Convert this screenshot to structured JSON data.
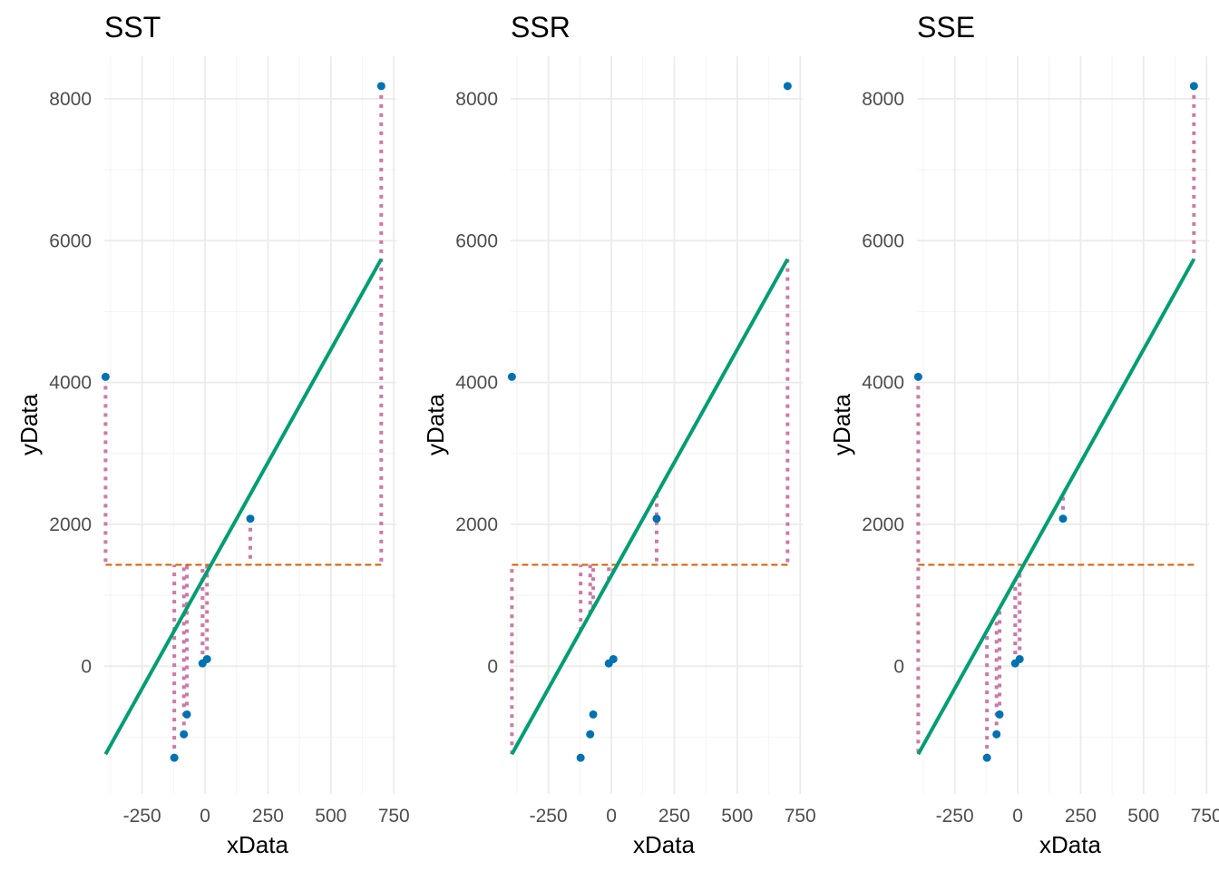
{
  "colors": {
    "points": "#0072b2",
    "regression_line": "#009e73",
    "mean_line": "#d55e00",
    "segments": "#cc79a7",
    "grid_major": "#ebebeb",
    "grid_minor": "#f5f5f5"
  },
  "chart_data": [
    {
      "type": "scatter",
      "title": "SST",
      "xlabel": "xData",
      "ylabel": "yData",
      "xlim": [
        -400,
        760
      ],
      "ylim": [
        -1800,
        8600
      ],
      "x_ticks": [
        -250,
        0,
        250,
        500,
        750
      ],
      "x_tick_labels": [
        "-250",
        "0",
        "250",
        "500",
        "750"
      ],
      "y_ticks": [
        0,
        2000,
        4000,
        6000,
        8000
      ],
      "y_tick_labels": [
        "0",
        "2000",
        "4000",
        "6000",
        "8000"
      ],
      "grid": true,
      "points": [
        {
          "x": -395,
          "y": 4080
        },
        {
          "x": -122,
          "y": -1290
        },
        {
          "x": -84,
          "y": -960
        },
        {
          "x": -72,
          "y": -680
        },
        {
          "x": -10,
          "y": 40
        },
        {
          "x": 8,
          "y": 100
        },
        {
          "x": 180,
          "y": 2080
        },
        {
          "x": 700,
          "y": 8180
        }
      ],
      "regression_line": {
        "x": [
          -395,
          700
        ],
        "y": [
          -1240,
          5740
        ]
      },
      "mean_y": 1430,
      "segments": "point-to-mean"
    },
    {
      "type": "scatter",
      "title": "SSR",
      "xlabel": "xData",
      "ylabel": "yData",
      "xlim": [
        -400,
        760
      ],
      "ylim": [
        -1800,
        8600
      ],
      "x_ticks": [
        -250,
        0,
        250,
        500,
        750
      ],
      "x_tick_labels": [
        "-250",
        "0",
        "250",
        "500",
        "750"
      ],
      "y_ticks": [
        0,
        2000,
        4000,
        6000,
        8000
      ],
      "y_tick_labels": [
        "0",
        "2000",
        "4000",
        "6000",
        "8000"
      ],
      "grid": true,
      "points": [
        {
          "x": -395,
          "y": 4080
        },
        {
          "x": -122,
          "y": -1290
        },
        {
          "x": -84,
          "y": -960
        },
        {
          "x": -72,
          "y": -680
        },
        {
          "x": -10,
          "y": 40
        },
        {
          "x": 8,
          "y": 100
        },
        {
          "x": 180,
          "y": 2080
        },
        {
          "x": 700,
          "y": 8180
        }
      ],
      "regression_line": {
        "x": [
          -395,
          700
        ],
        "y": [
          -1240,
          5740
        ]
      },
      "mean_y": 1430,
      "segments": "fit-to-mean"
    },
    {
      "type": "scatter",
      "title": "SSE",
      "xlabel": "xData",
      "ylabel": "yData",
      "xlim": [
        -400,
        760
      ],
      "ylim": [
        -1800,
        8600
      ],
      "x_ticks": [
        -250,
        0,
        250,
        500,
        750
      ],
      "x_tick_labels": [
        "-250",
        "0",
        "250",
        "500",
        "750"
      ],
      "y_ticks": [
        0,
        2000,
        4000,
        6000,
        8000
      ],
      "y_tick_labels": [
        "0",
        "2000",
        "4000",
        "6000",
        "8000"
      ],
      "grid": true,
      "points": [
        {
          "x": -395,
          "y": 4080
        },
        {
          "x": -122,
          "y": -1290
        },
        {
          "x": -84,
          "y": -960
        },
        {
          "x": -72,
          "y": -680
        },
        {
          "x": -10,
          "y": 40
        },
        {
          "x": 8,
          "y": 100
        },
        {
          "x": 180,
          "y": 2080
        },
        {
          "x": 700,
          "y": 8180
        }
      ],
      "regression_line": {
        "x": [
          -395,
          700
        ],
        "y": [
          -1240,
          5740
        ]
      },
      "mean_y": 1430,
      "segments": "point-to-fit"
    }
  ]
}
